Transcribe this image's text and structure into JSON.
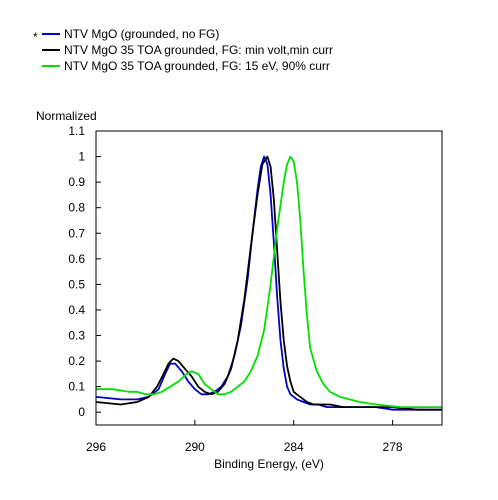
{
  "chart_data": {
    "type": "line",
    "title": "",
    "xlabel": "Binding Energy, (eV)",
    "ylabel": "Normalized",
    "xlim": [
      296,
      275
    ],
    "ylim": [
      -0.05,
      1.1
    ],
    "x_reversed": true,
    "x_ticks": [
      296,
      290,
      284,
      278
    ],
    "x_tick_labels": [
      "296",
      "290",
      "284",
      "278"
    ],
    "y_ticks": [
      0,
      0.1,
      0.2,
      0.3,
      0.4,
      0.5,
      0.6,
      0.7,
      0.8,
      0.9,
      1,
      1.1
    ],
    "y_tick_labels": [
      "0",
      "0.1",
      "0.2",
      "0.3",
      "0.4",
      "0.5",
      "0.6",
      "0.7",
      "0.8",
      "0.9",
      "1",
      "1.1"
    ],
    "grid": false,
    "legend_position": "top-left",
    "legend_marker": "*",
    "series": [
      {
        "name": "NTV MgO (grounded, no FG)",
        "color": "#0000cc",
        "x": [
          296,
          294.5,
          293.5,
          292.8,
          292.2,
          291.8,
          291.5,
          291.2,
          290.8,
          290.4,
          290,
          289.6,
          289.2,
          288.8,
          288.4,
          288,
          287.6,
          287.2,
          286.8,
          286.5,
          286.2,
          286,
          285.8,
          285.6,
          285.4,
          285.2,
          285,
          284.8,
          284.6,
          284.4,
          284.2,
          283.8,
          283.4,
          283,
          282.5,
          282,
          281,
          280,
          279,
          278,
          276.5,
          275
        ],
        "y": [
          0.06,
          0.05,
          0.05,
          0.06,
          0.09,
          0.15,
          0.19,
          0.19,
          0.16,
          0.12,
          0.09,
          0.07,
          0.07,
          0.08,
          0.1,
          0.14,
          0.22,
          0.34,
          0.52,
          0.7,
          0.87,
          0.96,
          1.0,
          0.97,
          0.85,
          0.66,
          0.45,
          0.28,
          0.17,
          0.1,
          0.07,
          0.05,
          0.04,
          0.03,
          0.03,
          0.02,
          0.02,
          0.02,
          0.02,
          0.01,
          0.01,
          0.01
        ]
      },
      {
        "name": "NTV MgO 35 TOA grounded, FG: min volt,min curr",
        "color": "#000000",
        "x": [
          296,
          294.5,
          293.5,
          292.8,
          292.3,
          291.9,
          291.6,
          291.3,
          291,
          290.6,
          290.2,
          289.8,
          289.4,
          289,
          288.6,
          288.2,
          287.8,
          287.4,
          287,
          286.6,
          286.2,
          285.9,
          285.6,
          285.4,
          285.2,
          285,
          284.8,
          284.6,
          284.4,
          284.2,
          284,
          283.6,
          283.2,
          282.8,
          282.3,
          281.8,
          281,
          280,
          279,
          278,
          276.5,
          275
        ],
        "y": [
          0.04,
          0.03,
          0.04,
          0.06,
          0.1,
          0.15,
          0.19,
          0.21,
          0.2,
          0.17,
          0.14,
          0.1,
          0.08,
          0.07,
          0.08,
          0.11,
          0.17,
          0.28,
          0.44,
          0.65,
          0.85,
          0.97,
          1.0,
          0.96,
          0.83,
          0.63,
          0.43,
          0.28,
          0.18,
          0.12,
          0.08,
          0.06,
          0.04,
          0.03,
          0.03,
          0.03,
          0.02,
          0.02,
          0.02,
          0.02,
          0.01,
          0.01
        ]
      },
      {
        "name": "NTV MgO 35 TOA grounded, FG: 15 eV, 90% curr",
        "color": "#00e000",
        "x": [
          296,
          295,
          294,
          293.5,
          293,
          292.5,
          292,
          291.5,
          291,
          290.5,
          290.2,
          289.8,
          289.4,
          289,
          288.6,
          288.2,
          287.8,
          287.4,
          287,
          286.6,
          286.2,
          285.8,
          285.4,
          285,
          284.6,
          284.4,
          284.2,
          284,
          283.8,
          283.6,
          283.4,
          283.2,
          283,
          282.6,
          282.2,
          281.8,
          281.2,
          280.6,
          280,
          279,
          277.5,
          276,
          275
        ],
        "y": [
          0.09,
          0.09,
          0.08,
          0.08,
          0.07,
          0.07,
          0.08,
          0.1,
          0.12,
          0.15,
          0.16,
          0.15,
          0.11,
          0.09,
          0.07,
          0.07,
          0.08,
          0.1,
          0.12,
          0.16,
          0.22,
          0.32,
          0.5,
          0.72,
          0.9,
          0.97,
          1.0,
          0.98,
          0.9,
          0.75,
          0.55,
          0.38,
          0.25,
          0.16,
          0.11,
          0.08,
          0.06,
          0.05,
          0.04,
          0.03,
          0.02,
          0.02,
          0.02
        ]
      }
    ]
  }
}
